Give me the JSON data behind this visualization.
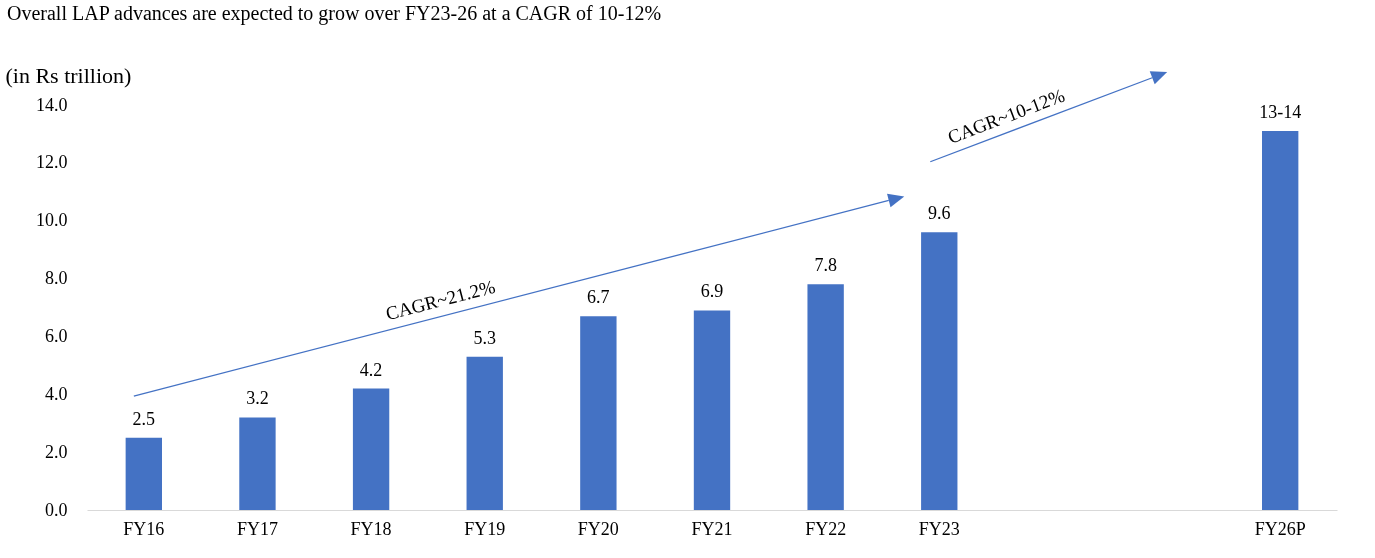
{
  "chart_data": {
    "type": "bar",
    "title": "Overall LAP advances are expected to grow over FY23-26 at a CAGR of 10-12%",
    "ylabel": "(in Rs trillion)",
    "categories": [
      "FY16",
      "FY17",
      "FY18",
      "FY19",
      "FY20",
      "FY21",
      "FY22",
      "FY23",
      null,
      null,
      "FY26P"
    ],
    "values": [
      2.5,
      3.2,
      4.2,
      5.3,
      6.7,
      6.9,
      7.8,
      9.6,
      null,
      null,
      13.1
    ],
    "value_labels": [
      "2.5",
      "3.2",
      "4.2",
      "5.3",
      "6.7",
      "6.9",
      "7.8",
      "9.6",
      null,
      null,
      "13-14"
    ],
    "color": "#4472c4",
    "ylim": [
      0,
      14
    ],
    "yticks": [
      {
        "value": 0,
        "label": "0.0"
      },
      {
        "value": 2,
        "label": "2.0"
      },
      {
        "value": 4,
        "label": "4.0"
      },
      {
        "value": 6,
        "label": "6.0"
      },
      {
        "value": 8,
        "label": "8.0"
      },
      {
        "value": 10,
        "label": "10.0"
      },
      {
        "value": 12,
        "label": "12.0"
      },
      {
        "value": 14,
        "label": "14.0"
      }
    ],
    "grid": false,
    "annotations": [
      "CAGR~21.2%",
      "CAGR~10-12%"
    ]
  }
}
